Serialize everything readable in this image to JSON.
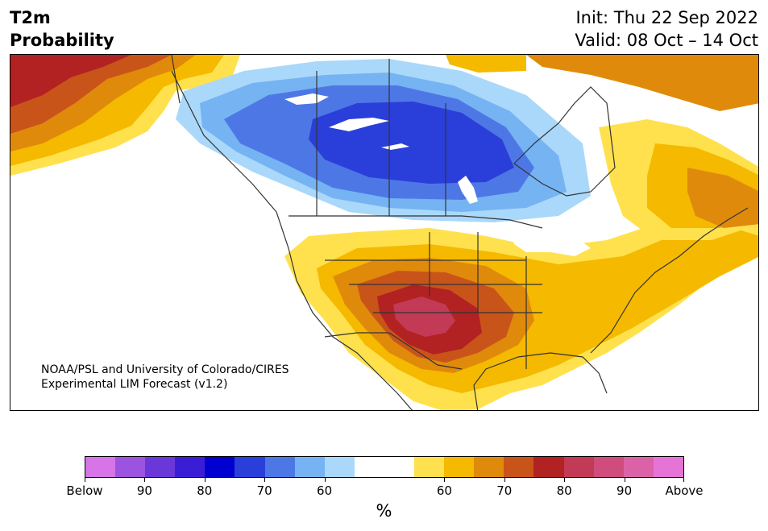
{
  "header": {
    "title_line1": "T2m",
    "title_line2": "Probability",
    "init_text": "Init: Thu 22 Sep 2022",
    "valid_text": "Valid: 08 Oct – 14 Oct"
  },
  "map": {
    "credit_line1": "NOAA/PSL and University of Colorado/CIRES",
    "credit_line2": "Experimental LIM Forecast (v1.2)",
    "colors": {
      "above_60": "#ffe14d",
      "above_65": "#f5b900",
      "above_70": "#e08a0c",
      "above_75": "#c9541a",
      "above_80": "#b22222",
      "above_85": "#c23a55",
      "below_60": "#a9d8fa",
      "below_65": "#76b3f2",
      "below_70": "#4e77e6",
      "below_75": "#2a3fd9",
      "border": "#333333"
    }
  },
  "colorbar": {
    "colors": [
      "#d674e8",
      "#9c54e0",
      "#6a38d9",
      "#3a1ed6",
      "#0000d0",
      "#2a3fd9",
      "#4e77e6",
      "#76b3f2",
      "#a9d8fa",
      "#ffffff",
      "#ffffff",
      "#ffe14d",
      "#f5b900",
      "#e08a0c",
      "#c9541a",
      "#b22222",
      "#c23a55",
      "#cf4c7c",
      "#dc62a8",
      "#e574d6"
    ],
    "tick_labels": [
      "Below",
      "90",
      "80",
      "70",
      "60",
      "60",
      "70",
      "80",
      "90",
      "Above"
    ],
    "unit_label": "%"
  }
}
